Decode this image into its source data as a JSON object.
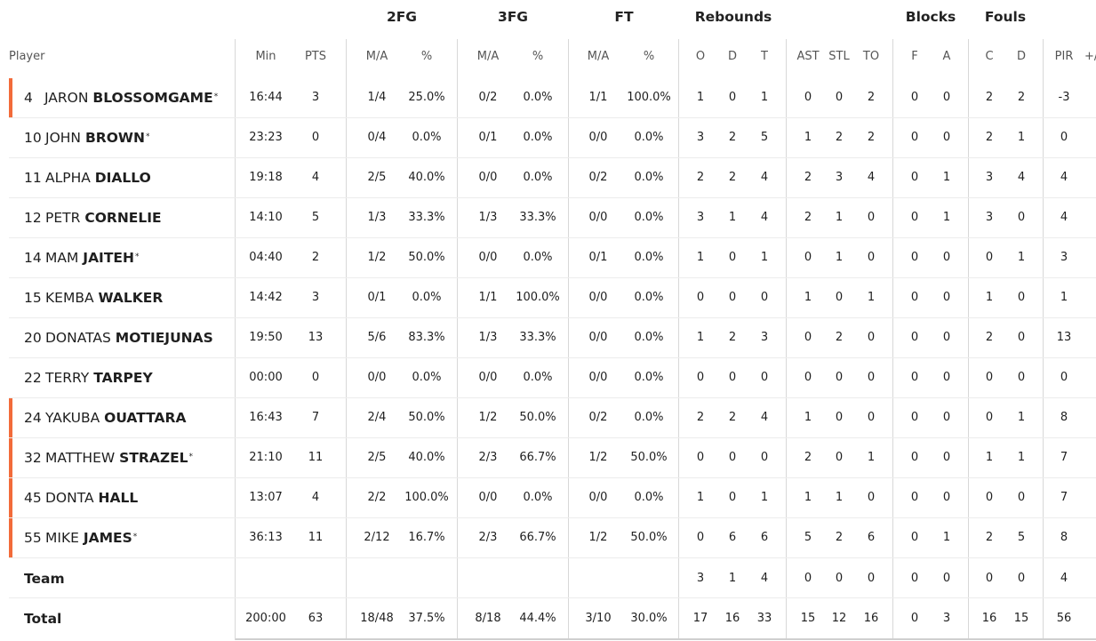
{
  "groups": {
    "fg2": "2FG",
    "fg3": "3FG",
    "ft": "FT",
    "rebounds": "Rebounds",
    "blocks": "Blocks",
    "fouls": "Fouls"
  },
  "headers": {
    "player": "Player",
    "min": "Min",
    "pts": "PTS",
    "fg2_ma": "M/A",
    "fg2_pct": "%",
    "fg3_ma": "M/A",
    "fg3_pct": "%",
    "ft_ma": "M/A",
    "ft_pct": "%",
    "reb_o": "O",
    "reb_d": "D",
    "reb_t": "T",
    "ast": "AST",
    "stl": "STL",
    "to": "TO",
    "blk_f": "F",
    "blk_a": "A",
    "foul_c": "C",
    "foul_d": "D",
    "pir": "PIR",
    "pm": "+/"
  },
  "players": [
    {
      "num": "4",
      "first": "JARON",
      "last": "BLOSSOMGAME",
      "star": "*",
      "marker": true,
      "cells": [
        "16:44",
        "3",
        "1/4",
        "25.0%",
        "0/2",
        "0.0%",
        "1/1",
        "100.0%",
        "1",
        "0",
        "1",
        "0",
        "0",
        "2",
        "0",
        "0",
        "2",
        "2",
        "-3"
      ]
    },
    {
      "num": "10",
      "first": "JOHN",
      "last": "BROWN",
      "star": "*",
      "marker": false,
      "cells": [
        "23:23",
        "0",
        "0/4",
        "0.0%",
        "0/1",
        "0.0%",
        "0/0",
        "0.0%",
        "3",
        "2",
        "5",
        "1",
        "2",
        "2",
        "0",
        "0",
        "2",
        "1",
        "0"
      ]
    },
    {
      "num": "11",
      "first": "ALPHA",
      "last": "DIALLO",
      "star": "",
      "marker": false,
      "cells": [
        "19:18",
        "4",
        "2/5",
        "40.0%",
        "0/0",
        "0.0%",
        "0/2",
        "0.0%",
        "2",
        "2",
        "4",
        "2",
        "3",
        "4",
        "0",
        "1",
        "3",
        "4",
        "4"
      ]
    },
    {
      "num": "12",
      "first": "PETR",
      "last": "CORNELIE",
      "star": "",
      "marker": false,
      "cells": [
        "14:10",
        "5",
        "1/3",
        "33.3%",
        "1/3",
        "33.3%",
        "0/0",
        "0.0%",
        "3",
        "1",
        "4",
        "2",
        "1",
        "0",
        "0",
        "1",
        "3",
        "0",
        "4"
      ]
    },
    {
      "num": "14",
      "first": "MAM",
      "last": "JAITEH",
      "star": "*",
      "marker": false,
      "cells": [
        "04:40",
        "2",
        "1/2",
        "50.0%",
        "0/0",
        "0.0%",
        "0/1",
        "0.0%",
        "1",
        "0",
        "1",
        "0",
        "1",
        "0",
        "0",
        "0",
        "0",
        "1",
        "3"
      ]
    },
    {
      "num": "15",
      "first": "KEMBA",
      "last": "WALKER",
      "star": "",
      "marker": false,
      "cells": [
        "14:42",
        "3",
        "0/1",
        "0.0%",
        "1/1",
        "100.0%",
        "0/0",
        "0.0%",
        "0",
        "0",
        "0",
        "1",
        "0",
        "1",
        "0",
        "0",
        "1",
        "0",
        "1"
      ]
    },
    {
      "num": "20",
      "first": "DONATAS",
      "last": "MOTIEJUNAS",
      "star": "",
      "marker": false,
      "cells": [
        "19:50",
        "13",
        "5/6",
        "83.3%",
        "1/3",
        "33.3%",
        "0/0",
        "0.0%",
        "1",
        "2",
        "3",
        "0",
        "2",
        "0",
        "0",
        "0",
        "2",
        "0",
        "13"
      ]
    },
    {
      "num": "22",
      "first": "TERRY",
      "last": "TARPEY",
      "star": "",
      "marker": false,
      "cells": [
        "00:00",
        "0",
        "0/0",
        "0.0%",
        "0/0",
        "0.0%",
        "0/0",
        "0.0%",
        "0",
        "0",
        "0",
        "0",
        "0",
        "0",
        "0",
        "0",
        "0",
        "0",
        "0"
      ]
    },
    {
      "num": "24",
      "first": "YAKUBA",
      "last": "OUATTARA",
      "star": "",
      "marker": true,
      "cells": [
        "16:43",
        "7",
        "2/4",
        "50.0%",
        "1/2",
        "50.0%",
        "0/2",
        "0.0%",
        "2",
        "2",
        "4",
        "1",
        "0",
        "0",
        "0",
        "0",
        "0",
        "1",
        "8"
      ]
    },
    {
      "num": "32",
      "first": "MATTHEW",
      "last": "STRAZEL",
      "star": "*",
      "marker": true,
      "cells": [
        "21:10",
        "11",
        "2/5",
        "40.0%",
        "2/3",
        "66.7%",
        "1/2",
        "50.0%",
        "0",
        "0",
        "0",
        "2",
        "0",
        "1",
        "0",
        "0",
        "1",
        "1",
        "7"
      ]
    },
    {
      "num": "45",
      "first": "DONTA",
      "last": "HALL",
      "star": "",
      "marker": true,
      "cells": [
        "13:07",
        "4",
        "2/2",
        "100.0%",
        "0/0",
        "0.0%",
        "0/0",
        "0.0%",
        "1",
        "0",
        "1",
        "1",
        "1",
        "0",
        "0",
        "0",
        "0",
        "0",
        "7"
      ]
    },
    {
      "num": "55",
      "first": "MIKE",
      "last": "JAMES",
      "star": "*",
      "marker": true,
      "cells": [
        "36:13",
        "11",
        "2/12",
        "16.7%",
        "2/3",
        "66.7%",
        "1/2",
        "50.0%",
        "0",
        "6",
        "6",
        "5",
        "2",
        "6",
        "0",
        "1",
        "2",
        "5",
        "8"
      ]
    }
  ],
  "team": {
    "label": "Team",
    "cells": [
      "",
      "",
      "",
      "",
      "",
      "",
      "",
      "",
      "3",
      "1",
      "4",
      "0",
      "0",
      "0",
      "0",
      "0",
      "0",
      "0",
      "4"
    ]
  },
  "total": {
    "label": "Total",
    "cells": [
      "200:00",
      "63",
      "18/48",
      "37.5%",
      "8/18",
      "44.4%",
      "3/10",
      "30.0%",
      "17",
      "16",
      "33",
      "15",
      "12",
      "16",
      "0",
      "3",
      "16",
      "15",
      "56"
    ]
  }
}
